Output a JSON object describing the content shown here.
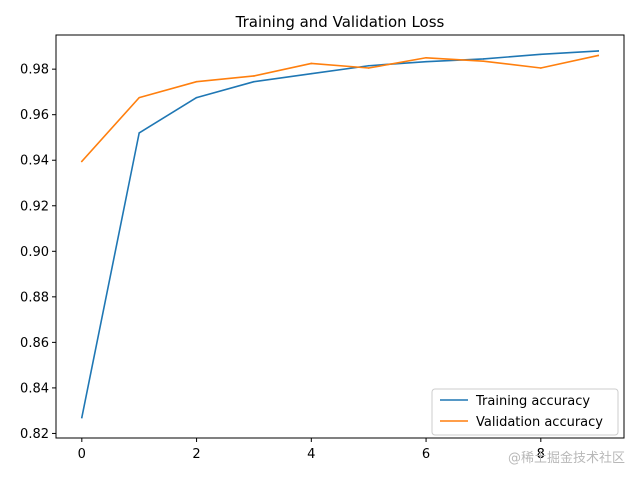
{
  "chart_data": {
    "type": "line",
    "title": "Training and Validation Loss",
    "xlabel": "",
    "ylabel": "",
    "xlim": [
      -0.45,
      9.45
    ],
    "ylim": [
      0.818,
      0.995
    ],
    "x_ticks": [
      0,
      2,
      4,
      6,
      8
    ],
    "x_tick_labels": [
      "0",
      "2",
      "4",
      "6",
      "8"
    ],
    "y_ticks": [
      0.82,
      0.84,
      0.86,
      0.88,
      0.9,
      0.92,
      0.94,
      0.96,
      0.98
    ],
    "y_tick_labels": [
      "0.82",
      "0.84",
      "0.86",
      "0.88",
      "0.90",
      "0.92",
      "0.94",
      "0.96",
      "0.98"
    ],
    "grid": false,
    "legend_position": "lower-right",
    "x": [
      0,
      1,
      2,
      3,
      4,
      5,
      6,
      7,
      8,
      9
    ],
    "series": [
      {
        "name": "Training accuracy",
        "color": "#1f77b4",
        "values": [
          0.827,
          0.952,
          0.9675,
          0.9745,
          0.978,
          0.9815,
          0.9833,
          0.9845,
          0.9865,
          0.988
        ]
      },
      {
        "name": "Validation accuracy",
        "color": "#ff7f0e",
        "values": [
          0.9395,
          0.9675,
          0.9745,
          0.977,
          0.9825,
          0.9805,
          0.985,
          0.9835,
          0.9805,
          0.986
        ]
      }
    ]
  },
  "watermark": "@稀土掘金技术社区"
}
